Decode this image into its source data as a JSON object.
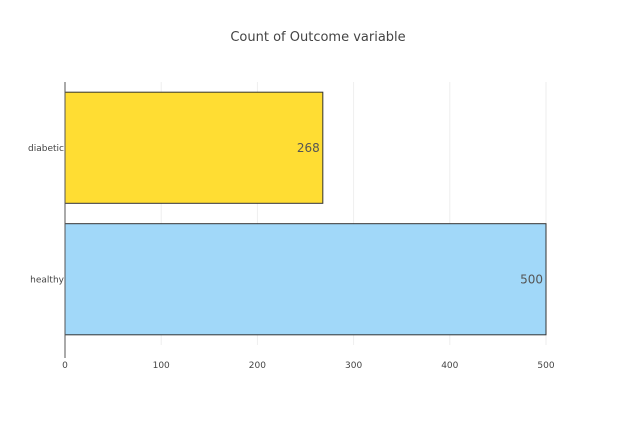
{
  "chart_data": {
    "type": "bar",
    "orientation": "horizontal",
    "title": "Count of Outcome variable",
    "xlabel": "",
    "ylabel": "",
    "categories": [
      "diabetic",
      "healthy"
    ],
    "values": [
      268,
      500
    ],
    "text_labels": [
      "268",
      "500"
    ],
    "bar_colors": [
      "#FFDD33",
      "#A1D8F9"
    ],
    "bar_border_color": "#333333",
    "xlim": [
      0,
      500
    ],
    "xticks": [
      0,
      100,
      200,
      300,
      400,
      500
    ],
    "grid": true,
    "legend": "none"
  }
}
